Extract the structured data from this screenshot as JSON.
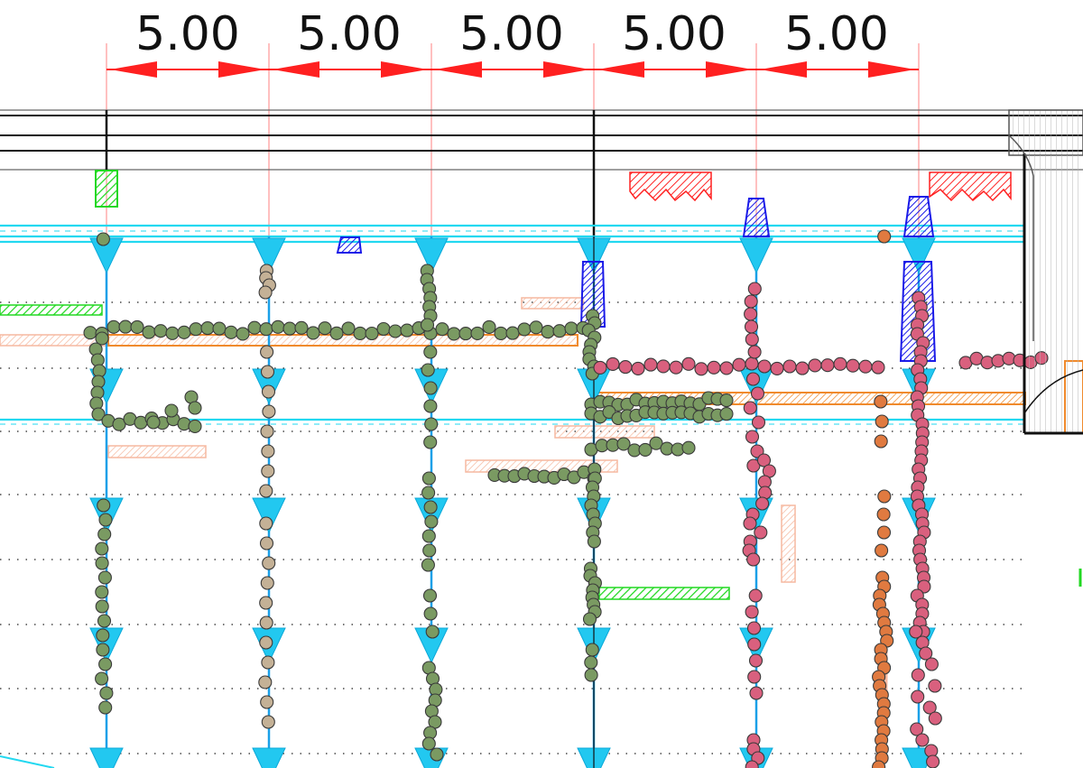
{
  "drawing": {
    "dimensions": [
      {
        "label": "5.00"
      },
      {
        "label": "5.00"
      },
      {
        "label": "5.00"
      },
      {
        "label": "5.00"
      },
      {
        "label": "5.00"
      }
    ]
  },
  "colors": {
    "dimension": "#ff2020",
    "structure": "#111111",
    "water_level": "#22d8f0",
    "column_line": "#1aa0e8",
    "triangle": "#22c8f0",
    "green_dot": "#7a9a62",
    "tan_dot": "#c4b196",
    "pink_dot": "#d9607e",
    "orange_dot": "#e07a40",
    "dot_outline": "#3a3a3a",
    "orange_band": "#f08a2c",
    "peach_band": "#f6b9a0",
    "green_hatch": "#22d822",
    "blue_hatch": "#1a1ae8",
    "red_hatch": "#ff2020",
    "wall_grey": "#999999"
  }
}
